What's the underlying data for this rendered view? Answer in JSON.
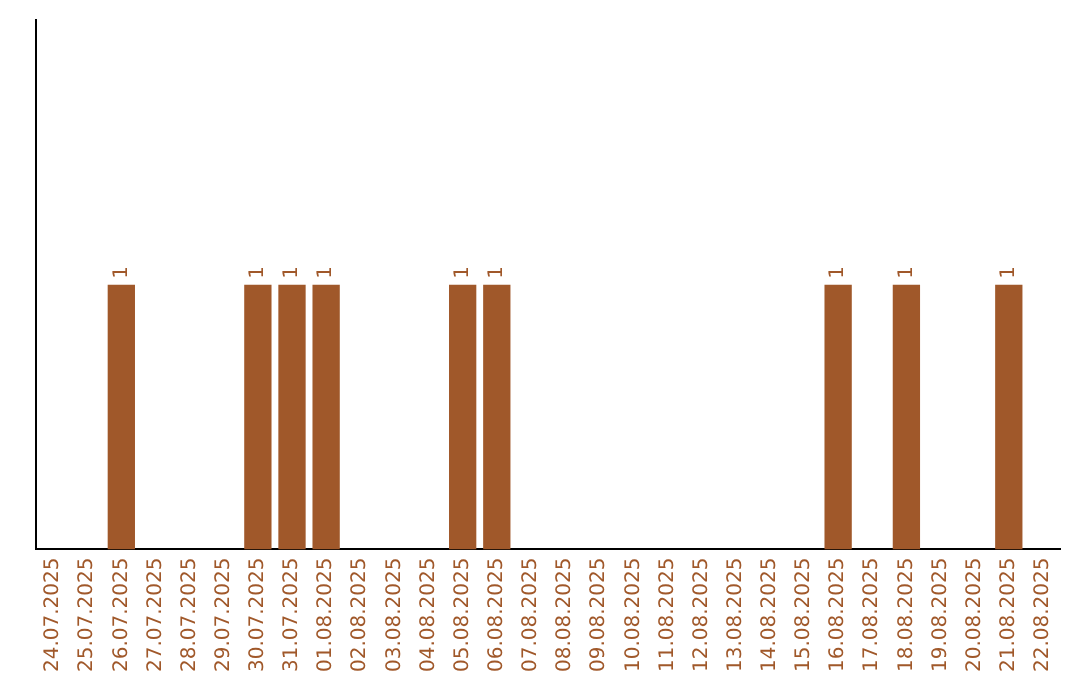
{
  "chart_data": {
    "type": "bar",
    "categories": [
      "24.07.2025",
      "25.07.2025",
      "26.07.2025",
      "27.07.2025",
      "28.07.2025",
      "29.07.2025",
      "30.07.2025",
      "31.07.2025",
      "01.08.2025",
      "02.08.2025",
      "03.08.2025",
      "04.08.2025",
      "05.08.2025",
      "06.08.2025",
      "07.08.2025",
      "08.08.2025",
      "09.08.2025",
      "10.08.2025",
      "11.08.2025",
      "12.08.2025",
      "13.08.2025",
      "14.08.2025",
      "15.08.2025",
      "16.08.2025",
      "17.08.2025",
      "18.08.2025",
      "19.08.2025",
      "20.08.2025",
      "21.08.2025",
      "22.08.2025"
    ],
    "values": [
      0,
      0,
      1,
      0,
      0,
      0,
      1,
      1,
      1,
      0,
      0,
      0,
      1,
      1,
      0,
      0,
      0,
      0,
      0,
      0,
      0,
      0,
      0,
      1,
      0,
      1,
      0,
      0,
      1,
      0
    ],
    "value_labels": [
      null,
      null,
      "1",
      null,
      null,
      null,
      "1",
      "1",
      "1",
      null,
      null,
      null,
      "1",
      "1",
      null,
      null,
      null,
      null,
      null,
      null,
      null,
      null,
      null,
      "1",
      null,
      "1",
      null,
      null,
      "1",
      null
    ],
    "color": "#a0582a",
    "ylim": [
      0,
      2
    ],
    "grid": false,
    "legend": false,
    "tick_labels": "x"
  }
}
